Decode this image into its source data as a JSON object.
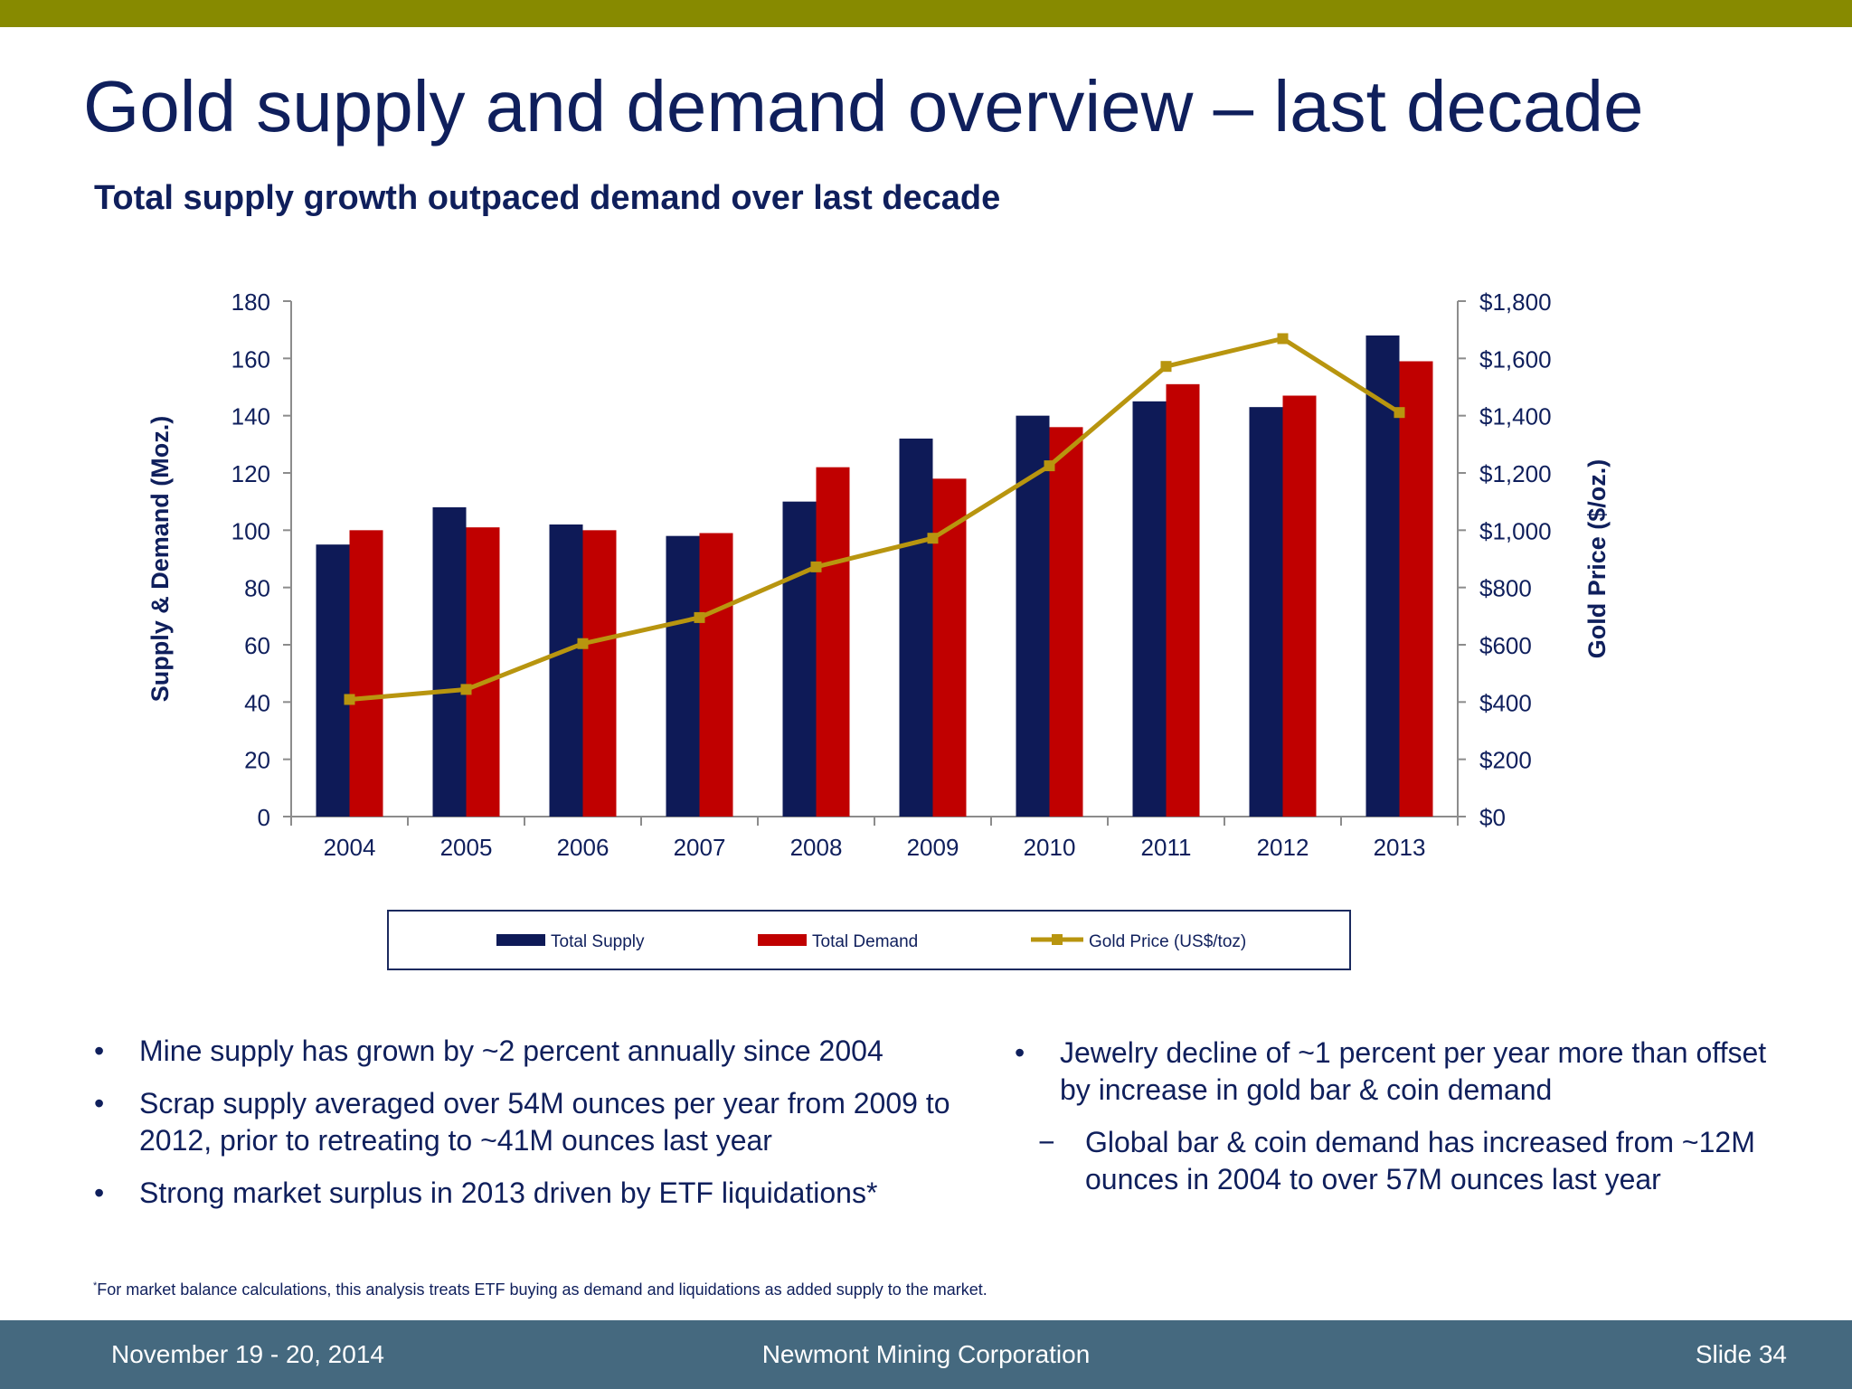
{
  "slide": {
    "title": "Gold supply and demand overview – last decade",
    "subtitle": "Total supply growth outpaced demand over last decade"
  },
  "chart_data": {
    "type": "bar",
    "categories": [
      "2004",
      "2005",
      "2006",
      "2007",
      "2008",
      "2009",
      "2010",
      "2011",
      "2012",
      "2013"
    ],
    "series": [
      {
        "name": "Total Supply",
        "type": "bar",
        "axis": "left",
        "color": "#0e1a57",
        "values": [
          95,
          108,
          102,
          98,
          110,
          132,
          140,
          145,
          143,
          168
        ]
      },
      {
        "name": "Total Demand",
        "type": "bar",
        "axis": "left",
        "color": "#c00000",
        "values": [
          100,
          101,
          100,
          99,
          122,
          118,
          136,
          151,
          147,
          159
        ]
      },
      {
        "name": "Gold Price (US$/toz)",
        "type": "line",
        "axis": "right",
        "color": "#b8950f",
        "values": [
          409,
          444,
          604,
          695,
          872,
          972,
          1225,
          1572,
          1669,
          1411
        ]
      }
    ],
    "y_left": {
      "label": "Supply & Demand (Moz.)",
      "min": 0,
      "max": 180,
      "ticks": [
        "0",
        "20",
        "40",
        "60",
        "80",
        "100",
        "120",
        "140",
        "160",
        "180"
      ]
    },
    "y_right": {
      "label": "Gold Price ($/oz.)",
      "min": 0,
      "max": 1800,
      "ticks": [
        "$0",
        "$200",
        "$400",
        "$600",
        "$800",
        "$1,000",
        "$1,200",
        "$1,400",
        "$1,600",
        "$1,800"
      ]
    },
    "grid": false,
    "legend_position": "bottom"
  },
  "bullets_left": [
    "Mine supply has grown by ~2 percent annually since 2004",
    "Scrap supply averaged over 54M ounces per year from 2009 to 2012, prior to retreating to ~41M ounces last year",
    "Strong market surplus in 2013 driven by ETF liquidations*"
  ],
  "bullets_right": [
    "Jewelry decline of ~1 percent per year more than offset by increase in gold bar & coin demand"
  ],
  "sub_bullets_right": [
    "Global bar & coin demand has increased from ~12M ounces in 2004 to over 57M ounces last year"
  ],
  "bullet_symbol": "•",
  "dash_symbol": "−",
  "footnote": {
    "marker": "*",
    "text": "For market balance calculations, this analysis treats ETF buying as demand and liquidations as added supply to the market."
  },
  "footer": {
    "date": "November 19 - 20, 2014",
    "company": "Newmont Mining Corporation",
    "slide": "Slide 34"
  }
}
